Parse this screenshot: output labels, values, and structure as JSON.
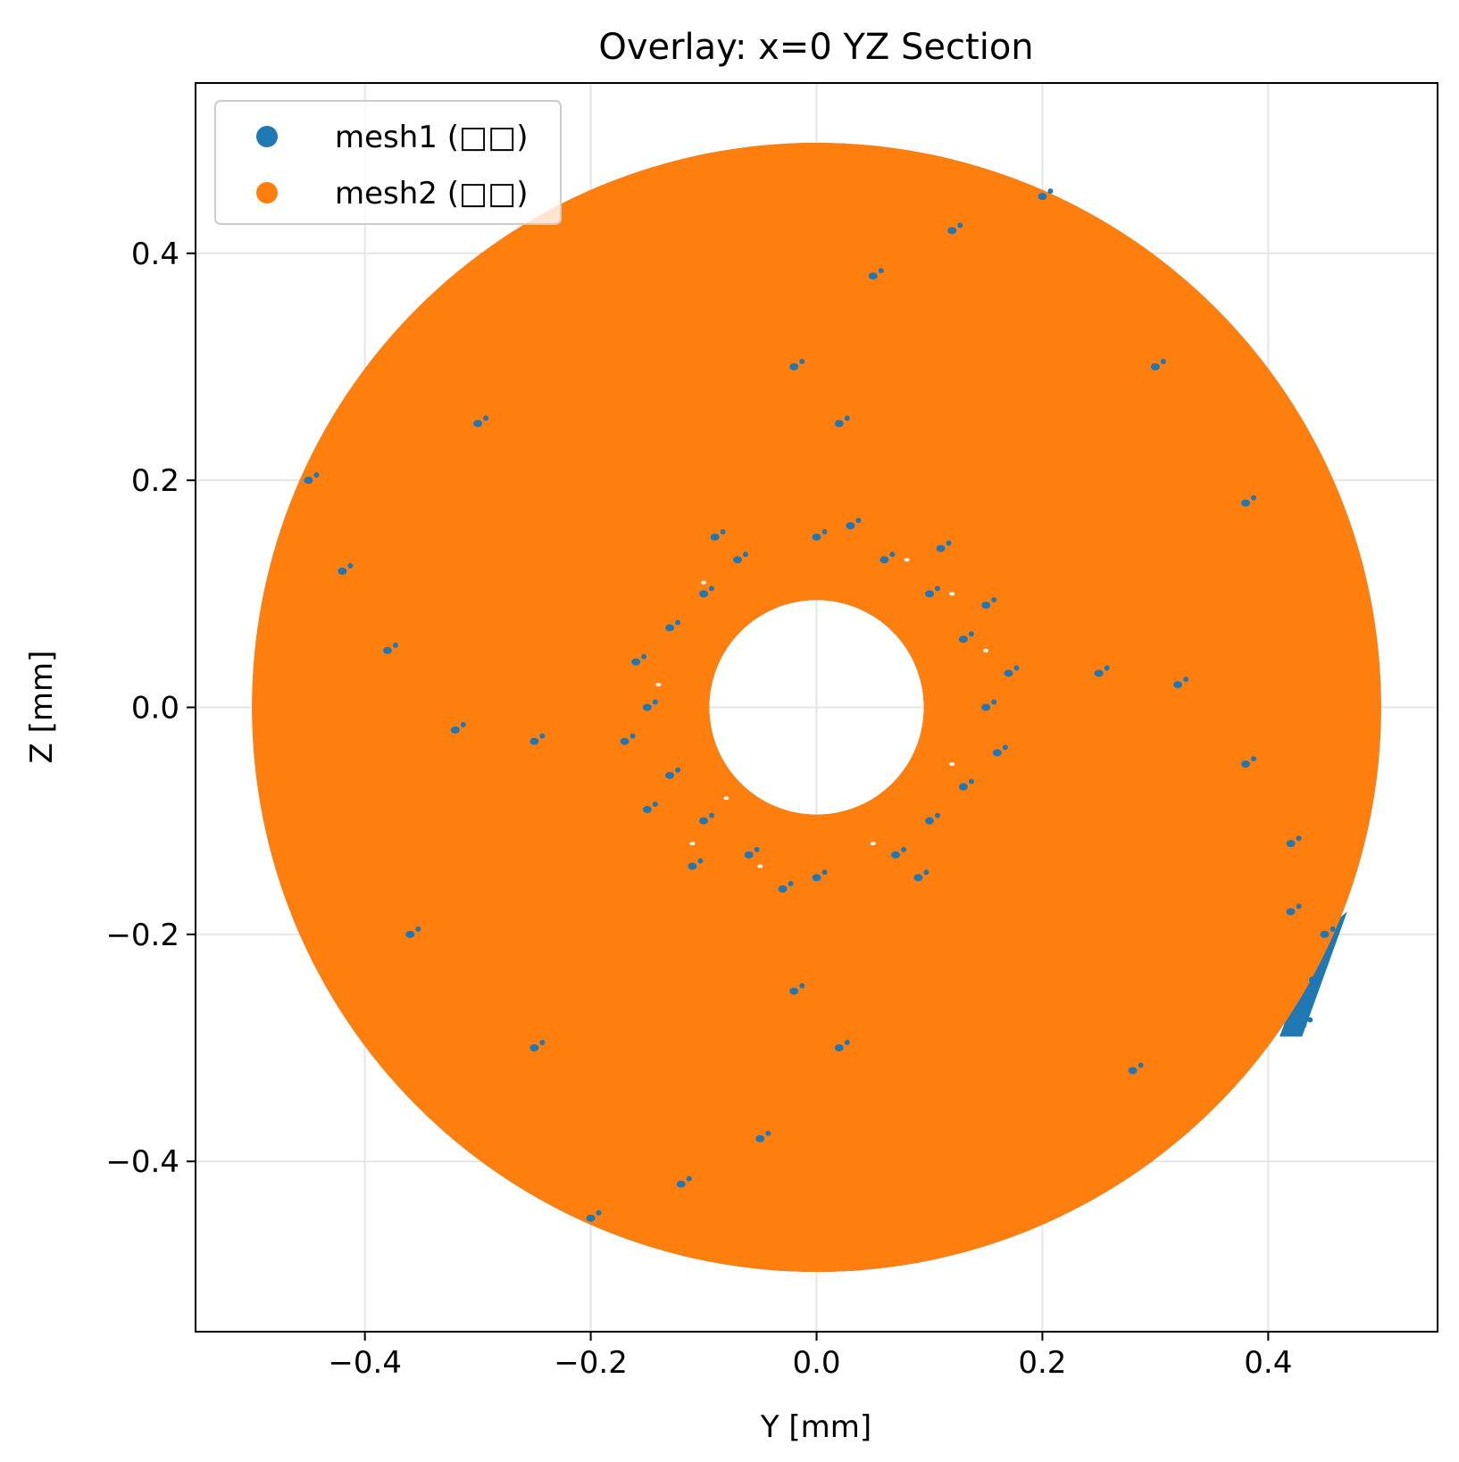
{
  "chart_data": {
    "type": "scatter",
    "title": "Overlay: x=0 YZ Section",
    "xlabel": "Y [mm]",
    "ylabel": "Z [mm]",
    "xlim": [
      -0.55,
      0.55
    ],
    "ylim": [
      -0.55,
      0.55
    ],
    "xticks": [
      -0.4,
      -0.2,
      0.0,
      0.2,
      0.4
    ],
    "yticks": [
      -0.4,
      -0.2,
      0.0,
      0.2,
      0.4
    ],
    "xtick_labels": [
      "−0.4",
      "−0.2",
      "0.0",
      "0.2",
      "0.4"
    ],
    "ytick_labels": [
      "−0.4",
      "−0.2",
      "0.0",
      "0.2",
      "0.4"
    ],
    "grid": true,
    "legend_position": "top-left",
    "series": [
      {
        "name": "mesh1 (□□)",
        "color": "#1f77b4",
        "shape": "annulus",
        "center": [
          0.0,
          0.0
        ],
        "outer_radius": 0.5,
        "inner_radius": 0.095
      },
      {
        "name": "mesh2 (□□)",
        "color": "#ff7f0e",
        "shape": "annulus",
        "center": [
          0.0,
          0.0
        ],
        "outer_radius": 0.5,
        "inner_radius": 0.095
      }
    ],
    "blue_patches": [
      [
        0.0,
        0.15
      ],
      [
        0.02,
        0.25
      ],
      [
        -0.02,
        0.3
      ],
      [
        0.05,
        0.38
      ],
      [
        0.12,
        0.42
      ],
      [
        0.2,
        0.45
      ],
      [
        0.0,
        -0.15
      ],
      [
        -0.02,
        -0.25
      ],
      [
        0.02,
        -0.3
      ],
      [
        -0.05,
        -0.38
      ],
      [
        -0.12,
        -0.42
      ],
      [
        -0.2,
        -0.45
      ],
      [
        0.15,
        0.0
      ],
      [
        0.25,
        0.03
      ],
      [
        0.32,
        0.02
      ],
      [
        0.38,
        -0.05
      ],
      [
        0.42,
        -0.12
      ],
      [
        0.45,
        -0.2
      ],
      [
        -0.15,
        0.0
      ],
      [
        -0.25,
        -0.03
      ],
      [
        -0.32,
        -0.02
      ],
      [
        -0.38,
        0.05
      ],
      [
        -0.42,
        0.12
      ],
      [
        -0.45,
        0.2
      ],
      [
        0.1,
        0.1
      ],
      [
        -0.1,
        0.1
      ],
      [
        0.1,
        -0.1
      ],
      [
        -0.1,
        -0.1
      ],
      [
        0.13,
        0.06
      ],
      [
        -0.13,
        -0.06
      ],
      [
        0.06,
        0.13
      ],
      [
        -0.06,
        -0.13
      ],
      [
        0.13,
        -0.07
      ],
      [
        -0.13,
        0.07
      ],
      [
        0.07,
        -0.13
      ],
      [
        -0.07,
        0.13
      ],
      [
        0.15,
        0.09
      ],
      [
        -0.15,
        -0.09
      ],
      [
        0.11,
        0.14
      ],
      [
        -0.11,
        -0.14
      ],
      [
        0.16,
        -0.04
      ],
      [
        -0.16,
        0.04
      ],
      [
        0.03,
        0.16
      ],
      [
        -0.03,
        -0.16
      ],
      [
        0.09,
        -0.15
      ],
      [
        -0.09,
        0.15
      ],
      [
        0.17,
        0.03
      ],
      [
        -0.17,
        -0.03
      ],
      [
        0.3,
        0.3
      ],
      [
        -0.3,
        0.25
      ],
      [
        0.28,
        -0.32
      ],
      [
        -0.25,
        -0.3
      ],
      [
        0.38,
        0.18
      ],
      [
        -0.36,
        -0.2
      ],
      [
        0.43,
        -0.28
      ],
      [
        0.42,
        -0.18
      ],
      [
        0.44,
        -0.24
      ]
    ],
    "white_gaps": [
      [
        0.12,
        -0.05
      ],
      [
        -0.1,
        0.11
      ],
      [
        0.08,
        0.13
      ],
      [
        -0.11,
        -0.12
      ],
      [
        0.15,
        0.05
      ],
      [
        -0.05,
        -0.14
      ],
      [
        0.05,
        -0.12
      ],
      [
        -0.14,
        0.02
      ],
      [
        0.12,
        0.1
      ],
      [
        -0.08,
        -0.08
      ]
    ]
  }
}
